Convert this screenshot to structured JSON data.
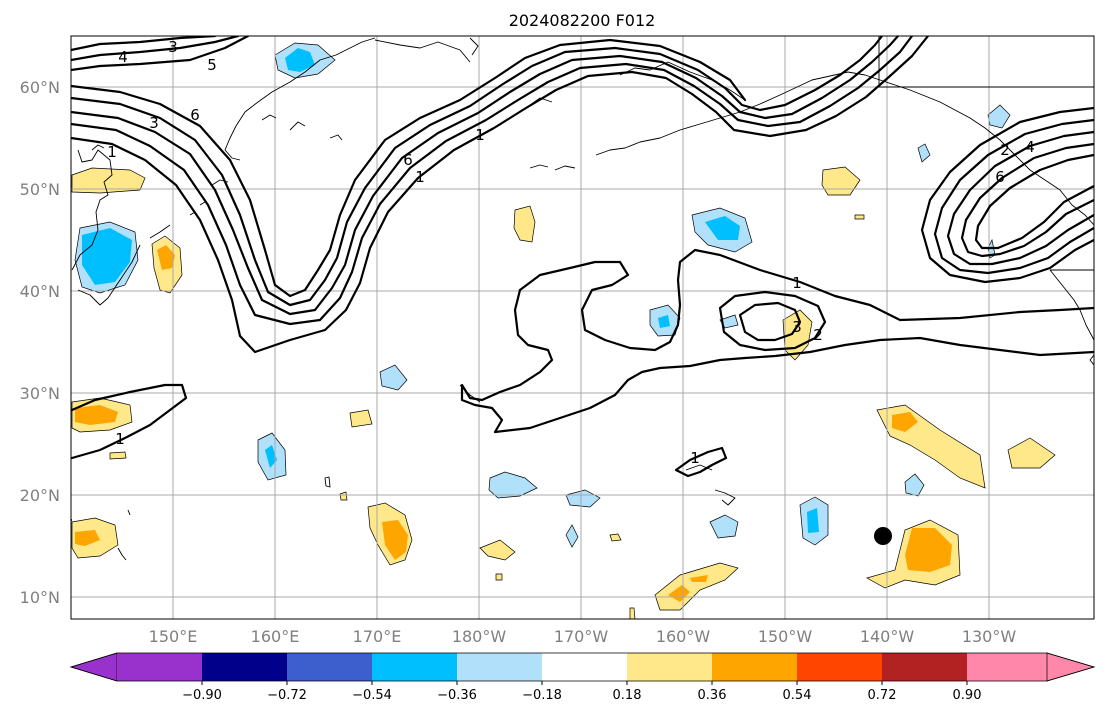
{
  "title": "2024082200 F012",
  "lat_labels": [
    "60°N",
    "50°N",
    "40°N",
    "30°N",
    "20°N",
    "10°N"
  ],
  "lon_labels": [
    "150°E",
    "160°E",
    "170°E",
    "180°W",
    "170°W",
    "160°W",
    "150°W",
    "140°W",
    "130°W"
  ],
  "contour_labels": [
    "3",
    "4",
    "5",
    "6",
    "1",
    "3",
    "6",
    "1",
    "1",
    "3",
    "2",
    "1",
    "1",
    "1",
    "2",
    "4",
    "6"
  ],
  "colorbar": {
    "colors": [
      "#9932cc",
      "#00008b",
      "#3c5fcd",
      "#00bfff",
      "#b0e0fa",
      "#ffffff",
      "#ffe88a",
      "#ffa500",
      "#ff4500",
      "#b22222",
      "#ff88aa"
    ],
    "ticks": [
      "−0.90",
      "−0.72",
      "−0.54",
      "−0.36",
      "−0.18",
      "0.18",
      "0.36",
      "0.54",
      "0.72",
      "0.90"
    ]
  },
  "chart_data": {
    "type": "map",
    "projection": "PlateCarree",
    "extent": {
      "lon_min": 140,
      "lon_max": 240,
      "lat_min": 8,
      "lat_max": 65
    },
    "grid": true,
    "filled_field_levels": [
      -0.9,
      -0.72,
      -0.54,
      -0.36,
      -0.18,
      0.18,
      0.36,
      0.54,
      0.72,
      0.9
    ],
    "contour_levels_shown": [
      1,
      2,
      3,
      4,
      5,
      6
    ],
    "marker": {
      "lon": 221,
      "lat": 16.2,
      "shape": "filled-circle",
      "color": "#000000"
    }
  }
}
